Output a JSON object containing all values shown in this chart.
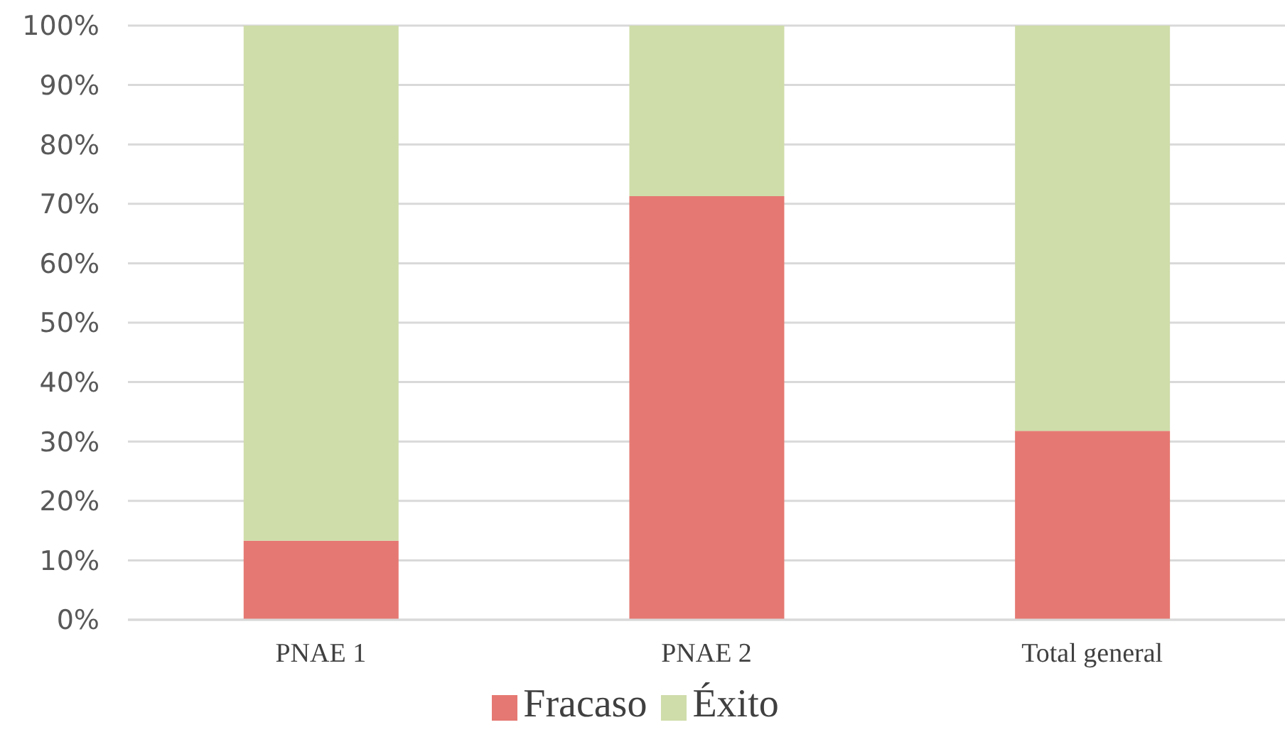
{
  "chart_data": {
    "type": "bar",
    "stacked": true,
    "categories": [
      "PNAE 1",
      "PNAE 2",
      "Total general"
    ],
    "series": [
      {
        "name": "Fracaso",
        "color": "#e57872",
        "values": [
          13.3,
          71.3,
          31.8
        ]
      },
      {
        "name": "Éxito",
        "color": "#cfddaa",
        "values": [
          86.7,
          28.7,
          68.2
        ]
      }
    ],
    "ylim": [
      0,
      100
    ],
    "yticks": [
      {
        "value": 0,
        "label": "0%"
      },
      {
        "value": 10,
        "label": "10%"
      },
      {
        "value": 20,
        "label": "20%"
      },
      {
        "value": 30,
        "label": "30%"
      },
      {
        "value": 40,
        "label": "40%"
      },
      {
        "value": 50,
        "label": "50%"
      },
      {
        "value": 60,
        "label": "60%"
      },
      {
        "value": 70,
        "label": "70%"
      },
      {
        "value": 80,
        "label": "80%"
      },
      {
        "value": 90,
        "label": "90%"
      },
      {
        "value": 100,
        "label": "100%"
      }
    ],
    "grid": "y",
    "legend": "bottom"
  }
}
